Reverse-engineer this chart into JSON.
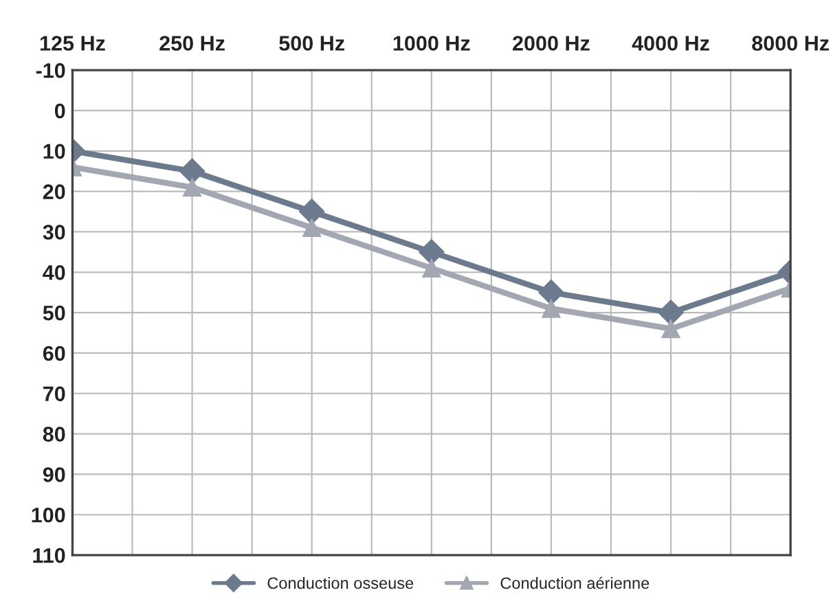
{
  "chart_data": {
    "type": "line",
    "categories": [
      "125 Hz",
      "250 Hz",
      "500 Hz",
      "1000 Hz",
      "2000 Hz",
      "4000 Hz",
      "8000 Hz"
    ],
    "series": [
      {
        "name": "Conduction osseuse",
        "color": "#6b7a8c",
        "marker": "diamond",
        "values": [
          10,
          15,
          25,
          35,
          45,
          50,
          40
        ]
      },
      {
        "name": "Conduction aérienne",
        "color": "#a3a7b2",
        "marker": "triangle",
        "values": [
          14,
          19,
          29,
          39,
          49,
          54,
          44
        ]
      }
    ],
    "ylim": [
      110,
      -10
    ],
    "yticks": [
      -10,
      0,
      10,
      20,
      30,
      40,
      50,
      60,
      70,
      80,
      90,
      100,
      110
    ],
    "grid": true,
    "legend": "bottom",
    "line_style": "solid"
  }
}
